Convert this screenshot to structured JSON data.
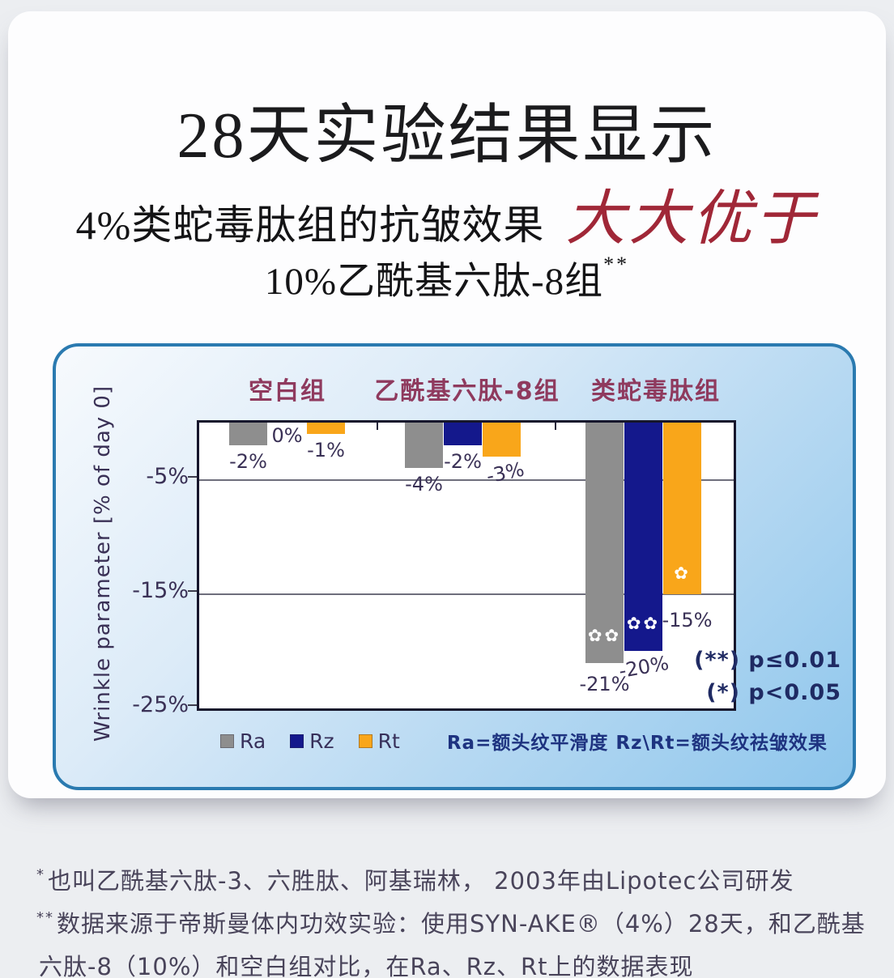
{
  "header": {
    "title": "28天实验结果显示",
    "subtitle_black": "4%类蛇毒肽组的抗皱效果",
    "subtitle_red": "大大优于",
    "subtitle2_text": "10%乙酰基六肽-8组",
    "subtitle2_sup": "**"
  },
  "chart_data": {
    "type": "bar",
    "title": "",
    "ylabel": "Wrinkle parameter [% of day 0]",
    "ylim": [
      -25,
      0
    ],
    "yticks": [
      "-5%",
      "-15%",
      "-25%"
    ],
    "ytick_values": [
      -5,
      -15,
      -25
    ],
    "grid": "horizontal",
    "groups": [
      "空白组",
      "乙酰基六肽-8组",
      "类蛇毒肽组"
    ],
    "series": [
      {
        "name": "Ra",
        "color": "#8e8e8e",
        "values": [
          -2,
          -4,
          -21
        ]
      },
      {
        "name": "Rz",
        "color": "#14188c",
        "values": [
          0,
          -2,
          -20
        ]
      },
      {
        "name": "Rt",
        "color": "#f9a61a",
        "values": [
          -1,
          -3,
          -15
        ]
      }
    ],
    "bar_labels": [
      [
        "-2%",
        "0%",
        "-1%"
      ],
      [
        "-4%",
        "-2%",
        "-3%"
      ],
      [
        "-21%",
        "-20%",
        "-15%"
      ]
    ],
    "significance": [
      [
        0,
        0,
        0
      ],
      [
        0,
        0,
        0
      ],
      [
        2,
        2,
        1
      ]
    ],
    "star_glyph": "✿",
    "legend_note": "Ra=额头纹平滑度  Rz\\Rt=额头纹祛皱效果",
    "pvalue_lines": [
      "(**)  p≤0.01",
      "(*)  p<0.05"
    ]
  },
  "footnotes": [
    {
      "marker": "*",
      "text": "也叫乙酰基六肽-3、六胜肽、阿基瑞林， 2003年由Lipotec公司研发"
    },
    {
      "marker": "**",
      "text": "数据来源于帝斯曼体内功效实验：使用SYN-AKE®（4%）28天，和乙酰基"
    },
    {
      "marker": "",
      "text": "六肽-8（10%）和空白组对比，在Ra、Rz、Rt上的数据表现"
    }
  ]
}
